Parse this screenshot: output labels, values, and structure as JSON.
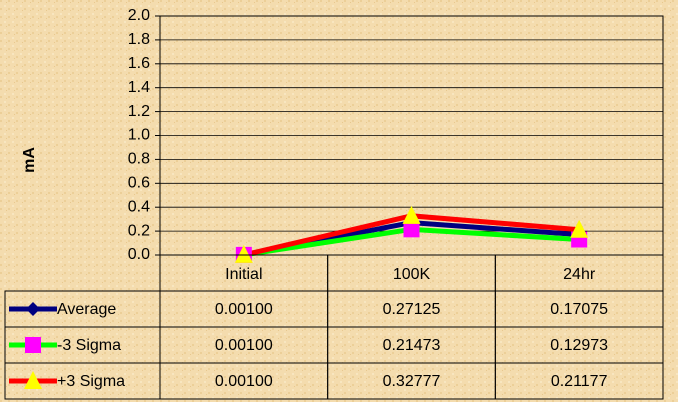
{
  "chart_data": {
    "type": "line",
    "y_label": "mA",
    "categories": [
      "Initial",
      "100K",
      "24hr"
    ],
    "series": [
      {
        "name": "Average",
        "color": "#000080",
        "marker": "diamond",
        "marker_color": "#000080",
        "values": [
          0.001,
          0.27125,
          0.17075
        ],
        "value_labels": [
          "0.00100",
          "0.27125",
          "0.17075"
        ]
      },
      {
        "name": "-3 Sigma",
        "color": "#00ff00",
        "marker": "square",
        "marker_color": "#ff00ff",
        "values": [
          0.001,
          0.21473,
          0.12973
        ],
        "value_labels": [
          "0.00100",
          "0.21473",
          "0.12973"
        ]
      },
      {
        "name": "+3 Sigma",
        "color": "#ff0000",
        "marker": "triangle",
        "marker_color": "#ffff00",
        "values": [
          0.001,
          0.32777,
          0.21177
        ],
        "value_labels": [
          "0.00100",
          "0.32777",
          "0.21177"
        ]
      }
    ],
    "ylim": [
      0,
      2
    ],
    "yticks": [
      {
        "value": 0,
        "label": "0.0"
      },
      0.2,
      0.4,
      0.6,
      0.8,
      {
        "value": 1,
        "label": "1.0"
      },
      1.2,
      1.4,
      1.6,
      1.8,
      {
        "value": 2,
        "label": "2.0"
      }
    ],
    "grid": true
  }
}
